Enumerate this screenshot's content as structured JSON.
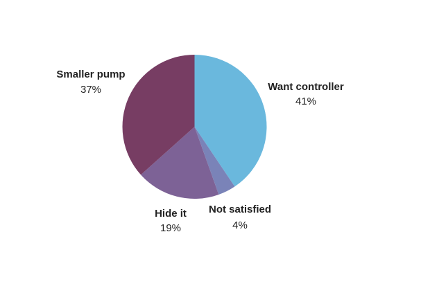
{
  "chart_data": {
    "type": "pie",
    "title": "",
    "start_angle_deg": 0,
    "direction": "clockwise",
    "slices": [
      {
        "label": "Want controller",
        "value": 41,
        "value_label": "41%",
        "color": "#6ab8dd"
      },
      {
        "label": "Not satisfied",
        "value": 4,
        "value_label": "4%",
        "color": "#7a83b8"
      },
      {
        "label": "Hide it",
        "value": 19,
        "value_label": "19%",
        "color": "#7d6296"
      },
      {
        "label": "Smaller pump",
        "value": 37,
        "value_label": "37%",
        "color": "#773d63"
      }
    ]
  }
}
